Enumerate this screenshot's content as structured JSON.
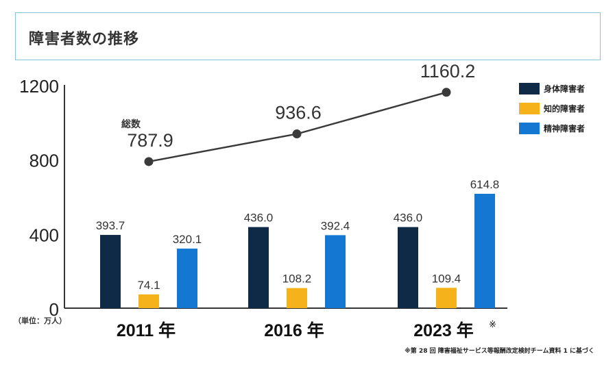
{
  "title": "障害者数の推移",
  "unit_label": "（単位：万人）",
  "source_note": "※第 28 回 障害福祉サービス等報酬改定検討チーム資料 1 に基づく",
  "colors": {
    "physical": "#0f2a47",
    "intellectual": "#f5b21a",
    "mental": "#1477d2",
    "line": "#3a3a3a",
    "title_border": "#86c3d9"
  },
  "legend": [
    {
      "label": "身体障害者",
      "color": "#0f2a47"
    },
    {
      "label": "知的障害者",
      "color": "#f5b21a"
    },
    {
      "label": "精神障害者",
      "color": "#1477d2"
    }
  ],
  "chart_data": {
    "type": "bar",
    "title": "障害者数の推移",
    "categories": [
      "2011 年",
      "2016 年",
      "2023 年"
    ],
    "category_note": [
      "",
      "",
      "※"
    ],
    "series": [
      {
        "name": "身体障害者",
        "values": [
          393.7,
          436.0,
          436.0
        ],
        "labels": [
          "393.7",
          "436.0",
          "436.0"
        ]
      },
      {
        "name": "知的障害者",
        "values": [
          74.1,
          108.2,
          109.4
        ],
        "labels": [
          "74.1",
          "108.2",
          "109.4"
        ]
      },
      {
        "name": "精神障害者",
        "values": [
          320.1,
          392.4,
          614.8
        ],
        "labels": [
          "320.1",
          "392.4",
          "614.8"
        ]
      }
    ],
    "total_line": {
      "name": "総数",
      "values": [
        787.9,
        936.6,
        1160.2
      ],
      "labels": [
        "787.9",
        "936.6",
        "1160.2"
      ]
    },
    "yticks": [
      "0",
      "400",
      "800",
      "1200"
    ],
    "ytick_values": [
      0,
      400,
      800,
      1200
    ],
    "ylim": [
      0,
      1200
    ],
    "ylabel": "",
    "xlabel": "",
    "legend_position": "top-right"
  }
}
